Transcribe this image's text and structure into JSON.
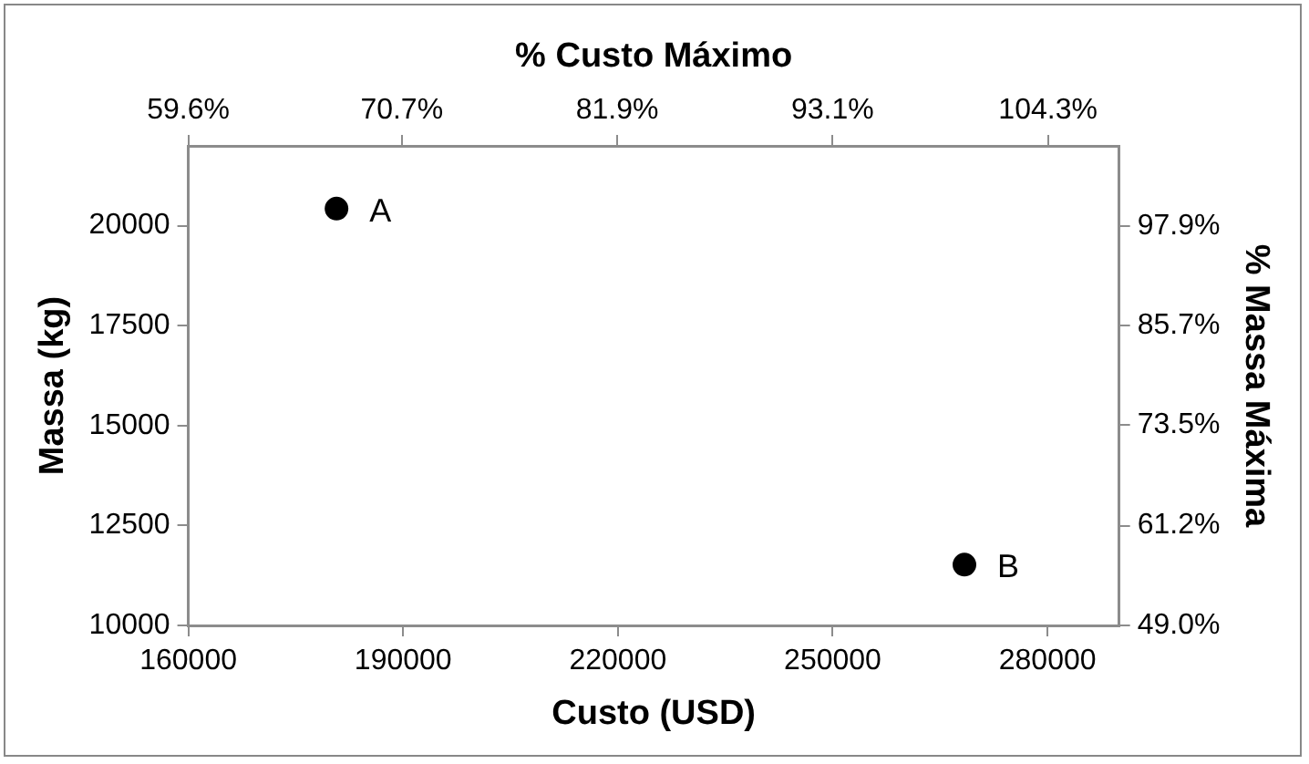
{
  "chart_data": {
    "type": "scatter",
    "xlabel": "Custo (USD)",
    "ylabel": "Massa (kg)",
    "x2label": "% Custo Máximo",
    "y2label": "% Massa Máxima",
    "x": [
      180700,
      268400
    ],
    "series": [
      {
        "color": "#000000",
        "values": [
          20430,
          11520
        ]
      }
    ],
    "marker": "circle",
    "grid": false,
    "legend": false,
    "xlim": [
      160000,
      290000
    ],
    "xticks": [
      160000,
      190000,
      220000,
      250000,
      280000
    ],
    "ylim": [
      10000,
      22000
    ],
    "yticks": [
      10000,
      12500,
      15000,
      17500,
      20000
    ],
    "x2lim": [
      59.6,
      108.0
    ],
    "x2ticks": [
      {
        "value": 59.6,
        "label": "59.6%"
      },
      {
        "value": 70.7,
        "label": "70.7%"
      },
      {
        "value": 81.9,
        "label": "81.9%"
      },
      {
        "value": 93.1,
        "label": "93.1%"
      },
      {
        "value": 104.3,
        "label": "104.3%"
      }
    ],
    "y2lim": [
      49.0,
      107.7
    ],
    "y2ticks": [
      {
        "value": 49.0,
        "label": "49.0%"
      },
      {
        "value": 61.2,
        "label": "61.2%"
      },
      {
        "value": 73.5,
        "label": "73.5%"
      },
      {
        "value": 85.7,
        "label": "85.7%"
      },
      {
        "value": 97.9,
        "label": "97.9%"
      }
    ],
    "annotations": [
      {
        "text": "A",
        "x": 180700,
        "y": 20430
      },
      {
        "text": "B",
        "x": 268400,
        "y": 11520
      }
    ]
  }
}
